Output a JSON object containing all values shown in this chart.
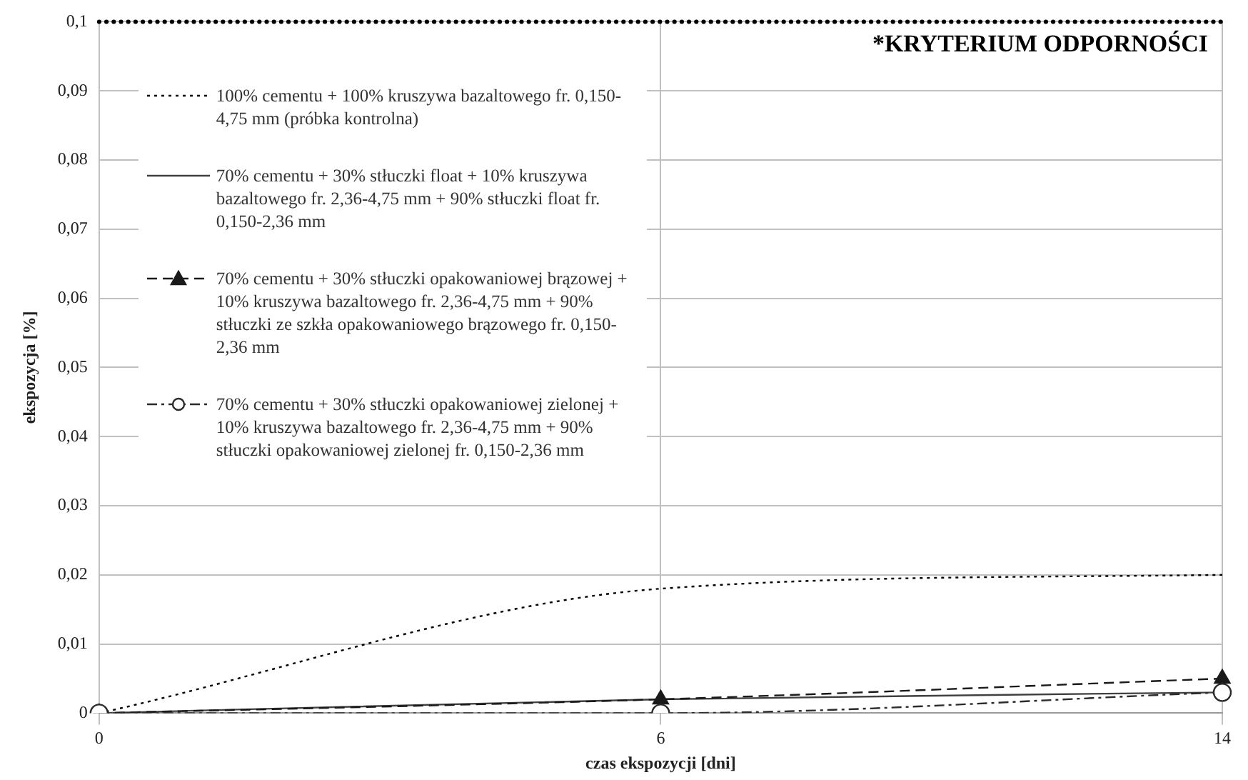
{
  "chart_data": {
    "type": "line",
    "xlabel": "czas ekspozycji [dni]",
    "ylabel": "ekspozycja [%]",
    "categories": [
      "0",
      "6",
      "14"
    ],
    "series": [
      {
        "name": "100% cementu + 100% kruszywa bazaltowego fr. 0,150-4,75 mm (próbka kontrolna)",
        "color": "#000000",
        "values": [
          0,
          0.018,
          0.02
        ],
        "line_style": "dotted",
        "marker": "none"
      },
      {
        "name": "70% cementu + 30% stłuczki float + 10% kruszywa bazaltowego fr. 2,36-4,75 mm + 90% stłuczki float fr. 0,150-2,36 mm",
        "color": "#404040",
        "values": [
          0,
          0.002,
          0.003
        ],
        "line_style": "solid",
        "marker": "none"
      },
      {
        "name": "70% cementu + 30% stłuczki opakowaniowej brązowej + 10% kruszywa bazaltowego fr. 2,36-4,75 mm + 90% stłuczki ze szkła opakowaniowego brązowego fr. 0,150-2,36 mm",
        "color": "#1a1a1a",
        "values": [
          0,
          0.002,
          0.005
        ],
        "line_style": "dashed",
        "marker": "triangle"
      },
      {
        "name": "70% cementu + 30% stłuczki opakowaniowej zielonej + 10% kruszywa bazaltowego fr. 2,36-4,75 mm + 90% stłuczki opakowaniowej zielonej fr. 0,150-2,36 mm",
        "color": "#2b2b2b",
        "values": [
          0,
          0,
          0.003
        ],
        "line_style": "dashdot",
        "marker": "circle"
      }
    ],
    "ylim": [
      0,
      0.1
    ],
    "yticks": [
      0,
      {
        "value": 0.01,
        "label": "0,01"
      },
      {
        "value": 0.02,
        "label": "0,02"
      },
      {
        "value": 0.03,
        "label": "0,03"
      },
      {
        "value": 0.04,
        "label": "0,04"
      },
      {
        "value": 0.05,
        "label": "0,05"
      },
      {
        "value": 0.06,
        "label": "0,06"
      },
      {
        "value": 0.07,
        "label": "0,07"
      },
      {
        "value": 0.08,
        "label": "0,08"
      },
      {
        "value": 0.09,
        "label": "0,09"
      },
      {
        "value": 0.1,
        "label": "0,1"
      }
    ],
    "ref_lines": [
      {
        "axis": "y",
        "value": 0.1,
        "label": "*KRYTERIUM ODPORNOŚCI",
        "color": "#000000",
        "line_style": "dotted"
      }
    ],
    "grid": true,
    "legend": "top left"
  }
}
